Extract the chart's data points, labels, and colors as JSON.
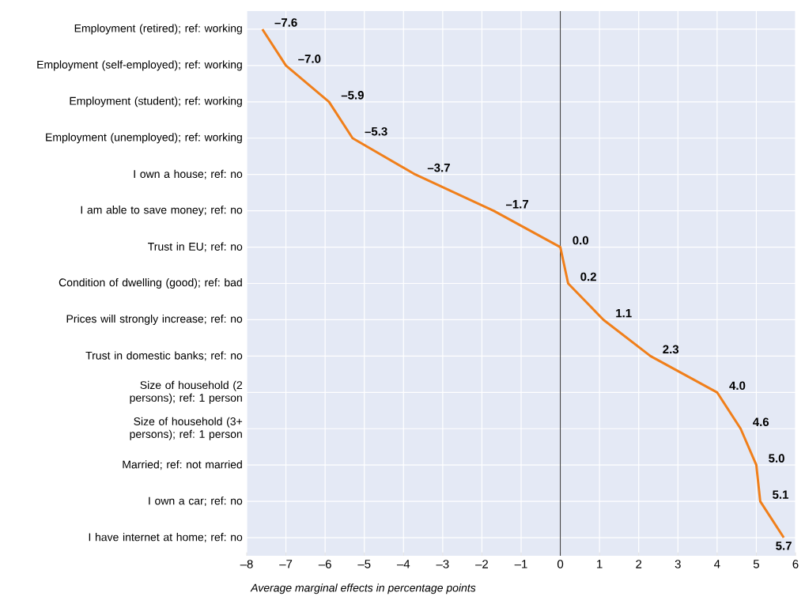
{
  "chart_data": {
    "type": "line",
    "orientation": "horizontal",
    "categories": [
      "Employment (retired); ref: working",
      "Employment (self-employed); ref: working",
      "Employment (student); ref: working",
      "Employment (unemployed); ref: working",
      "I own a house; ref: no",
      "I am able to save money; ref: no",
      "Trust in EU; ref: no",
      "Condition of dwelling (good); ref: bad",
      "Prices will strongly increase; ref: no",
      "Trust in domestic banks; ref: no",
      "Size of household (2 persons); ref: 1 person",
      "Size of household (3+ persons); ref: 1 person",
      "Married; ref: not married",
      "I own a car; ref: no",
      "I have internet at home; ref: no"
    ],
    "values": [
      -7.6,
      -7.0,
      -5.9,
      -5.3,
      -3.7,
      -1.7,
      0.0,
      0.2,
      1.1,
      2.3,
      4.0,
      4.6,
      5.0,
      5.1,
      5.7
    ],
    "value_labels": [
      "–7.6",
      "–7.0",
      "–5.9",
      "–5.3",
      "–3.7",
      "–1.7",
      "0.0",
      "0.2",
      "1.1",
      "2.3",
      "4.0",
      "4.6",
      "5.0",
      "5.1",
      "5.7"
    ],
    "color": "#f07f1a",
    "xlabel": "Average marginal effects in percentage points",
    "xlim": [
      -8,
      6
    ],
    "xticks": [
      {
        "value": -8,
        "label": "–8"
      },
      {
        "value": -7,
        "label": "–7"
      },
      {
        "value": -6,
        "label": "–6"
      },
      {
        "value": -5,
        "label": "–5"
      },
      {
        "value": -4,
        "label": "–4"
      },
      {
        "value": -3,
        "label": "–3"
      },
      {
        "value": -2,
        "label": "–2"
      },
      {
        "value": -1,
        "label": "–1"
      },
      0,
      1,
      2,
      3,
      4,
      5,
      6
    ],
    "ref_lines": [
      {
        "axis": "x",
        "value": 0,
        "color": "#000000"
      }
    ],
    "grid": true,
    "marker": "none"
  }
}
